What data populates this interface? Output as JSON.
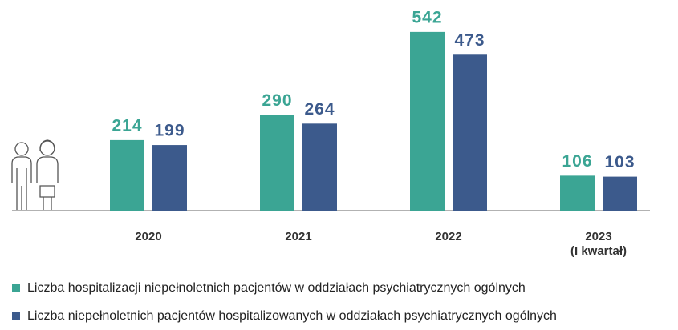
{
  "chart_data": {
    "type": "bar",
    "categories": [
      "2020",
      "2021",
      "2022",
      "2023\n(I kwartał)"
    ],
    "series": [
      {
        "name": "Liczba hospitalizacji niepełnoletnich pacjentów w oddziałach psychiatrycznych ogólnych",
        "color": "#3ba594",
        "values": [
          214,
          290,
          542,
          106
        ]
      },
      {
        "name": "Liczba niepełnoletnich pacjentów hospitalizowanych w oddziałach psychiatrycznych ogólnych",
        "color": "#3c5a8c",
        "values": [
          199,
          264,
          473,
          103
        ]
      }
    ],
    "ylim": [
      0,
      600
    ]
  }
}
